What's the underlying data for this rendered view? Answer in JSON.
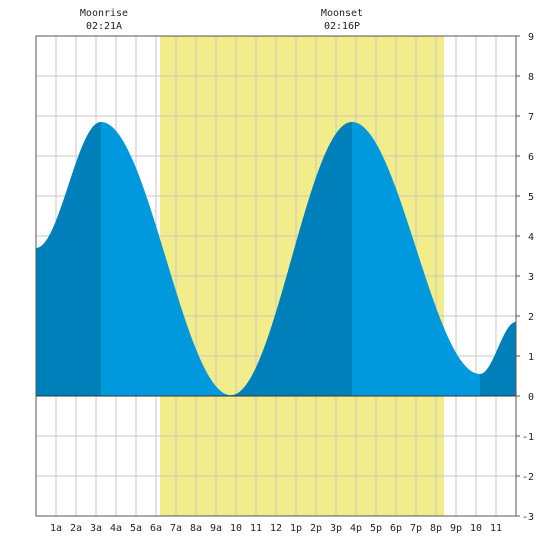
{
  "chart_data": {
    "type": "area",
    "title": "",
    "xlabel": "",
    "ylabel": "",
    "x_range_hours": [
      0,
      24
    ],
    "ylim": [
      -3,
      9
    ],
    "yticks": [
      -3,
      -2,
      -1,
      0,
      1,
      2,
      3,
      4,
      5,
      6,
      7,
      8,
      9
    ],
    "xtick_labels": [
      "1a",
      "2a",
      "3a",
      "4a",
      "5a",
      "6a",
      "7a",
      "8a",
      "9a",
      "10",
      "11",
      "12",
      "1p",
      "2p",
      "3p",
      "4p",
      "5p",
      "6p",
      "7p",
      "8p",
      "9p",
      "10",
      "11"
    ],
    "xtick_hours": [
      1,
      2,
      3,
      4,
      5,
      6,
      7,
      8,
      9,
      10,
      11,
      12,
      13,
      14,
      15,
      16,
      17,
      18,
      19,
      20,
      21,
      22,
      23
    ],
    "grid": true,
    "daylight_hours": [
      6.2,
      20.4
    ],
    "moon_events": [
      {
        "label": "Moonrise",
        "time": "02:21A",
        "hour": 3.4
      },
      {
        "label": "Moonset",
        "time": "02:16P",
        "hour": 15.3
      }
    ],
    "tide_series": {
      "hours": [
        0,
        3.25,
        9.75,
        15.8,
        22.2,
        24
      ],
      "heights": [
        3.7,
        6.85,
        0.02,
        6.85,
        0.55,
        1.85
      ]
    },
    "dark_segments_hours": [
      [
        0,
        3.25
      ],
      [
        9.75,
        15.8
      ],
      [
        22.2,
        24
      ]
    ],
    "colors": {
      "daylight": "#f2ec8a",
      "tide_light": "#0099dd",
      "tide_dark": "#0080bb",
      "grid": "#c8c8c8",
      "axis": "#555555"
    }
  }
}
